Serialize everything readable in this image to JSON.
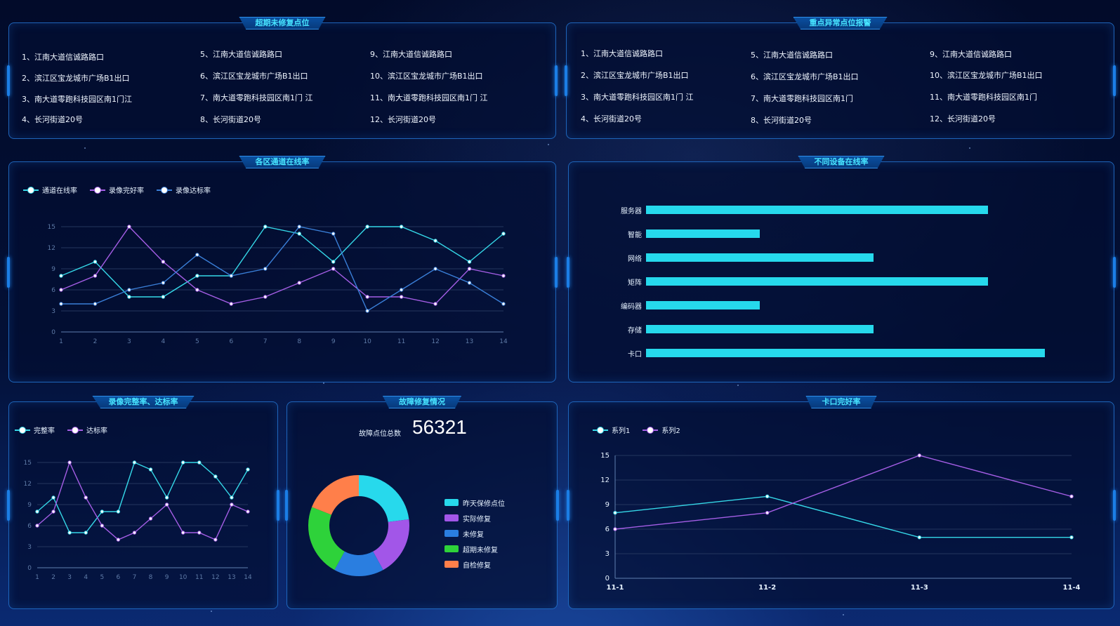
{
  "colors": {
    "cyan": "#35d8e8",
    "purple": "#a55ee6",
    "blue": "#3a7fd8",
    "grid": "#24365e",
    "axis": "#5f7fb0"
  },
  "panels": {
    "overdue": {
      "title": "超期未修复点位"
    },
    "abnormal": {
      "title": "重点异常点位报警"
    },
    "channel": {
      "title": "各区通道在线率"
    },
    "device": {
      "title": "不同设备在线率"
    },
    "record": {
      "title": "录像完整率、达标率"
    },
    "fault": {
      "title": "故障修复情况"
    },
    "checkpoint": {
      "title": "卡口完好率"
    }
  },
  "overdue_list": [
    [
      "1、江南大道信诚路路口",
      "2、滨江区宝龙城市广场B1出口",
      "3、南大道零跑科技园区南1门江",
      "4、长河街道20号"
    ],
    [
      "5、江南大道信诚路路口",
      "6、滨江区宝龙城市广场B1出口",
      "7、南大道零跑科技园区南1门 江",
      "8、长河街道20号"
    ],
    [
      "9、江南大道信诚路路口",
      "10、滨江区宝龙城市广场B1出口",
      "11、南大道零跑科技园区南1门 江",
      "12、长河街道20号"
    ]
  ],
  "abnormal_list": [
    [
      "1、江南大道信诚路路口",
      "2、滨江区宝龙城市广场B1出口",
      "3、南大道零跑科技园区南1门 江",
      "4、长河街道20号"
    ],
    [
      "5、江南大道信诚路路口",
      "6、滨江区宝龙城市广场B1出口",
      "7、南大道零跑科技园区南1门",
      "8、长河街道20号"
    ],
    [
      "9、江南大道信诚路路口",
      "10、滨江区宝龙城市广场B1出口",
      "11、南大道零跑科技园区南1门",
      "12、长河街道20号"
    ]
  ],
  "fault": {
    "total_label": "故障点位总数",
    "total_value": "56321"
  },
  "chart_data": [
    {
      "id": "channel",
      "type": "line",
      "x": [
        1,
        2,
        3,
        4,
        5,
        6,
        7,
        8,
        9,
        10,
        11,
        12,
        13,
        14
      ],
      "ylim": [
        0,
        15
      ],
      "yticks": [
        0,
        3,
        6,
        9,
        12,
        15
      ],
      "series": [
        {
          "name": "通道在线率",
          "color": "#35d8e8",
          "values": [
            8,
            10,
            5,
            5,
            8,
            8,
            15,
            14,
            10,
            15,
            15,
            13,
            10,
            14
          ]
        },
        {
          "name": "录像完好率",
          "color": "#a55ee6",
          "values": [
            6,
            8,
            15,
            10,
            6,
            4,
            5,
            7,
            9,
            5,
            5,
            4,
            9,
            8
          ]
        },
        {
          "name": "录像达标率",
          "color": "#3a7fd8",
          "values": [
            4,
            4,
            6,
            7,
            11,
            8,
            9,
            15,
            14,
            3,
            6,
            9,
            7,
            4
          ]
        }
      ]
    },
    {
      "id": "device",
      "type": "bar",
      "orientation": "horizontal",
      "categories": [
        "服务器",
        "智能",
        "网络",
        "矩阵",
        "编码器",
        "存储",
        "卡口"
      ],
      "values": [
        60,
        20,
        40,
        60,
        20,
        40,
        70
      ],
      "xlim": [
        0,
        82
      ],
      "color": "#26d9ec"
    },
    {
      "id": "record",
      "type": "line",
      "x": [
        1,
        2,
        3,
        4,
        5,
        6,
        7,
        8,
        9,
        10,
        11,
        12,
        13,
        14
      ],
      "ylim": [
        0,
        15
      ],
      "yticks": [
        0,
        3,
        6,
        9,
        12,
        15
      ],
      "series": [
        {
          "name": "完整率",
          "color": "#35d8e8",
          "values": [
            8,
            10,
            5,
            5,
            8,
            8,
            15,
            14,
            10,
            15,
            15,
            13,
            10,
            14
          ]
        },
        {
          "name": "达标率",
          "color": "#a55ee6",
          "values": [
            6,
            8,
            15,
            10,
            6,
            4,
            5,
            7,
            9,
            5,
            5,
            4,
            9,
            8
          ]
        }
      ]
    },
    {
      "id": "fault",
      "type": "pie",
      "donut": true,
      "categories": [
        "昨天保修点位",
        "实际修复",
        "未修复",
        "超期未修复",
        "自检修复"
      ],
      "values": [
        23,
        19,
        16,
        23,
        19
      ],
      "colors": [
        "#27d9ec",
        "#a256e8",
        "#2a7ee0",
        "#2ed23a",
        "#ff7f4a"
      ]
    },
    {
      "id": "checkpoint",
      "type": "line",
      "x": [
        "11-1",
        "11-2",
        "11-3",
        "11-4"
      ],
      "ylim": [
        0,
        15
      ],
      "yticks": [
        0,
        3,
        6,
        9,
        12,
        15
      ],
      "series": [
        {
          "name": "系列1",
          "color": "#35d8e8",
          "values": [
            8,
            10,
            5,
            5
          ]
        },
        {
          "name": "系列2",
          "color": "#a55ee6",
          "values": [
            6,
            8,
            15,
            10
          ]
        }
      ]
    }
  ]
}
